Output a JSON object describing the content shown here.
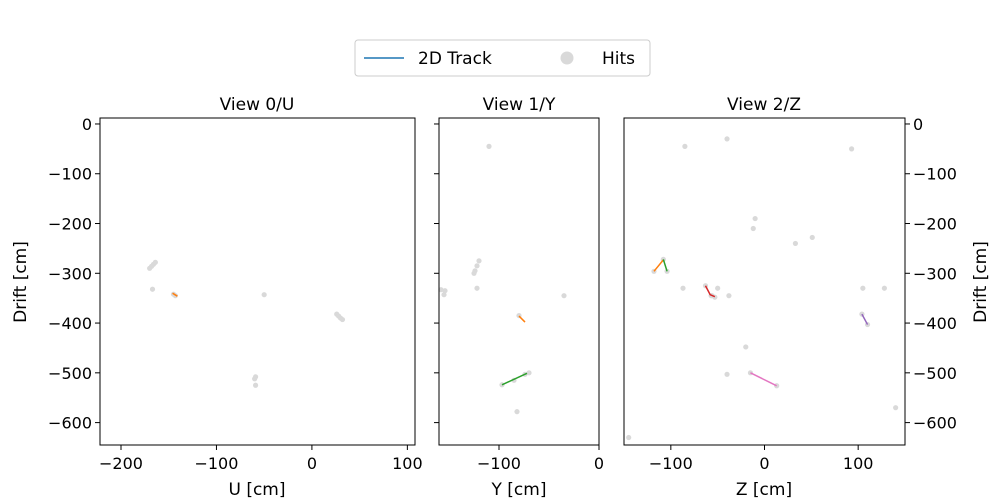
{
  "legend": {
    "track_label": "2D Track",
    "hits_label": "Hits",
    "location": "upper-center"
  },
  "colors": {
    "track": "#1f77b4",
    "hits": "#d9d9d9",
    "frame": "#000000"
  },
  "chart_data": [
    {
      "type": "scatter",
      "title": "View 0/U",
      "xlabel": "U [cm]",
      "ylabel": "Drift [cm]",
      "xlim": [
        -222,
        108
      ],
      "ylim": [
        -645,
        12
      ],
      "xticks": [
        -200,
        -100,
        0,
        100
      ],
      "xtick_labels": [
        "−200",
        "−100",
        "0",
        "100"
      ],
      "yticks": [
        0,
        -100,
        -200,
        -300,
        -400,
        -500,
        -600
      ],
      "ytick_labels": [
        "0",
        "−100",
        "−200",
        "−300",
        "−400",
        "−500",
        "−600"
      ],
      "grid": false,
      "hits": [
        [
          -170,
          -290
        ],
        [
          -168,
          -286
        ],
        [
          -166,
          -282
        ],
        [
          -164,
          -278
        ],
        [
          -167,
          -332
        ],
        [
          -145,
          -342
        ],
        [
          -143,
          -345
        ],
        [
          -50,
          -343
        ],
        [
          -59,
          -508
        ],
        [
          -60,
          -512
        ],
        [
          -59,
          -525
        ],
        [
          26,
          -382
        ],
        [
          28,
          -386
        ],
        [
          30,
          -390
        ],
        [
          32,
          -393
        ]
      ],
      "tracks": [
        {
          "color": "#ff7f0e",
          "points": [
            [
              -146,
              -340
            ],
            [
              -141,
              -346
            ]
          ]
        }
      ]
    },
    {
      "type": "scatter",
      "title": "View 1/Y",
      "xlabel": "Y [cm]",
      "xlim": [
        -160,
        0
      ],
      "ylim": [
        -645,
        12
      ],
      "xticks": [
        -100,
        0
      ],
      "xtick_labels": [
        "−100",
        "0"
      ],
      "yticks": [
        0,
        -100,
        -200,
        -300,
        -400,
        -500,
        -600
      ],
      "grid": false,
      "hits": [
        [
          -110,
          -45
        ],
        [
          -120,
          -275
        ],
        [
          -122,
          -285
        ],
        [
          -124,
          -295
        ],
        [
          -125,
          -300
        ],
        [
          -158,
          -333
        ],
        [
          -154,
          -335
        ],
        [
          -155,
          -343
        ],
        [
          -122,
          -330
        ],
        [
          -35,
          -345
        ],
        [
          -82,
          -578
        ],
        [
          -80,
          -385
        ],
        [
          -97,
          -524
        ],
        [
          -85,
          -515
        ],
        [
          -74,
          -503
        ],
        [
          -70,
          -500
        ]
      ],
      "tracks": [
        {
          "color": "#ff7f0e",
          "points": [
            [
              -80,
              -386
            ],
            [
              -74,
              -398
            ]
          ]
        },
        {
          "color": "#2ca02c",
          "points": [
            [
              -97,
              -524
            ],
            [
              -72,
              -501
            ]
          ]
        }
      ]
    },
    {
      "type": "scatter",
      "title": "View 2/Z",
      "xlabel": "Z [cm]",
      "ylabel": "Drift [cm]",
      "xlim": [
        -150,
        150
      ],
      "ylim": [
        -645,
        12
      ],
      "xticks": [
        -100,
        0,
        100
      ],
      "xtick_labels": [
        "−100",
        "0",
        "100"
      ],
      "yticks": [
        0,
        -100,
        -200,
        -300,
        -400,
        -500,
        -600
      ],
      "ytick_labels": [
        "0",
        "−100",
        "−200",
        "−300",
        "−400",
        "−500",
        "−600"
      ],
      "grid": false,
      "hits": [
        [
          -85,
          -45
        ],
        [
          -40,
          -30
        ],
        [
          93,
          -50
        ],
        [
          -10,
          -190
        ],
        [
          -12,
          -210
        ],
        [
          33,
          -240
        ],
        [
          51,
          -228
        ],
        [
          -87,
          -330
        ],
        [
          -56,
          -345
        ],
        [
          -38,
          -345
        ],
        [
          -50,
          -330
        ],
        [
          105,
          -330
        ],
        [
          128,
          -330
        ],
        [
          -20,
          -448
        ],
        [
          -40,
          -503
        ],
        [
          140,
          -570
        ],
        [
          -145,
          -630
        ],
        [
          -118,
          -296
        ],
        [
          -108,
          -272
        ],
        [
          -104,
          -296
        ],
        [
          -63,
          -325
        ],
        [
          -57,
          -345
        ],
        [
          -53,
          -348
        ],
        [
          104,
          -382
        ],
        [
          110,
          -403
        ],
        [
          -15,
          -500
        ],
        [
          13,
          -526
        ]
      ],
      "tracks": [
        {
          "color": "#ff7f0e",
          "points": [
            [
              -118,
              -296
            ],
            [
              -108,
              -273
            ]
          ]
        },
        {
          "color": "#2ca02c",
          "points": [
            [
              -108,
              -272
            ],
            [
              -104,
              -296
            ]
          ]
        },
        {
          "color": "#d62728",
          "points": [
            [
              -63,
              -325
            ],
            [
              -58,
              -343
            ],
            [
              -53,
              -347
            ]
          ]
        },
        {
          "color": "#9467bd",
          "points": [
            [
              104,
              -382
            ],
            [
              110,
              -403
            ]
          ]
        },
        {
          "color": "#e377c2",
          "points": [
            [
              -15,
              -500
            ],
            [
              13,
              -526
            ]
          ]
        }
      ]
    }
  ]
}
